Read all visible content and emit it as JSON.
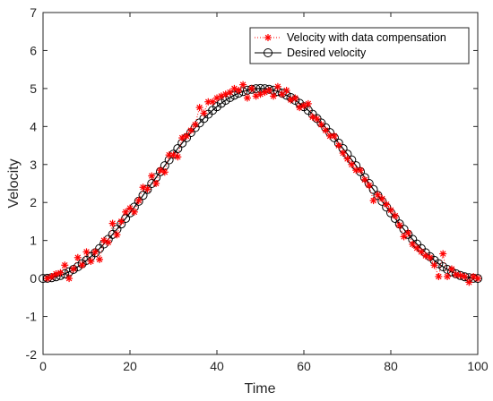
{
  "chart_data": {
    "type": "line",
    "title": "",
    "xlabel": "Time",
    "ylabel": "Velocity",
    "xlim": [
      0,
      100
    ],
    "ylim": [
      -2,
      7
    ],
    "xticks": [
      0,
      20,
      40,
      60,
      80,
      100
    ],
    "yticks": [
      -2,
      -1,
      0,
      1,
      2,
      3,
      4,
      5,
      6,
      7
    ],
    "grid": false,
    "legend_position": "top-right",
    "series": [
      {
        "name": "Velocity with data compensation",
        "marker": "asterisk",
        "line_style": "dotted",
        "color": "#ff0000",
        "x": [
          1,
          2,
          3,
          4,
          5,
          6,
          7,
          8,
          9,
          10,
          11,
          12,
          13,
          14,
          15,
          16,
          17,
          18,
          19,
          20,
          21,
          22,
          23,
          24,
          25,
          26,
          27,
          28,
          29,
          30,
          31,
          32,
          33,
          34,
          35,
          36,
          37,
          38,
          39,
          40,
          41,
          42,
          43,
          44,
          45,
          46,
          47,
          48,
          49,
          50,
          51,
          52,
          53,
          54,
          55,
          56,
          57,
          58,
          59,
          60,
          61,
          62,
          63,
          64,
          65,
          66,
          67,
          68,
          69,
          70,
          71,
          72,
          73,
          74,
          75,
          76,
          77,
          78,
          79,
          80,
          81,
          82,
          83,
          84,
          85,
          86,
          87,
          88,
          89,
          90,
          91,
          92,
          93,
          94,
          95,
          96,
          97,
          98,
          99,
          100
        ],
        "values": [
          0.0,
          0.05,
          0.12,
          0.15,
          0.35,
          0.0,
          0.25,
          0.55,
          0.35,
          0.7,
          0.45,
          0.7,
          0.5,
          1.0,
          0.95,
          1.45,
          1.15,
          1.5,
          1.75,
          1.85,
          1.75,
          2.05,
          2.4,
          2.35,
          2.7,
          2.5,
          2.85,
          2.8,
          3.25,
          3.25,
          3.2,
          3.7,
          3.75,
          3.9,
          4.05,
          4.5,
          4.35,
          4.65,
          4.65,
          4.75,
          4.8,
          4.85,
          4.9,
          5.0,
          4.95,
          5.1,
          4.75,
          5.0,
          4.8,
          4.85,
          4.9,
          4.95,
          4.8,
          5.05,
          4.85,
          4.95,
          4.7,
          4.75,
          4.5,
          4.55,
          4.6,
          4.25,
          4.2,
          4.05,
          3.9,
          3.75,
          3.75,
          3.5,
          3.3,
          3.15,
          3.0,
          2.85,
          2.85,
          2.6,
          2.45,
          2.05,
          2.2,
          2.1,
          1.95,
          1.8,
          1.65,
          1.4,
          1.1,
          1.2,
          0.9,
          0.8,
          0.7,
          0.6,
          0.55,
          0.35,
          0.05,
          0.65,
          0.05,
          0.25,
          0.1,
          0.08,
          0.05,
          -0.1,
          0.05,
          0.0
        ]
      },
      {
        "name": "Desired velocity",
        "marker": "circle",
        "line_style": "solid",
        "color": "#000000",
        "function": "2.5*(1-cos(2*pi*t/100))",
        "x": [
          0,
          1,
          2,
          3,
          4,
          5,
          6,
          7,
          8,
          9,
          10,
          11,
          12,
          13,
          14,
          15,
          16,
          17,
          18,
          19,
          20,
          21,
          22,
          23,
          24,
          25,
          26,
          27,
          28,
          29,
          30,
          31,
          32,
          33,
          34,
          35,
          36,
          37,
          38,
          39,
          40,
          41,
          42,
          43,
          44,
          45,
          46,
          47,
          48,
          49,
          50,
          51,
          52,
          53,
          54,
          55,
          56,
          57,
          58,
          59,
          60,
          61,
          62,
          63,
          64,
          65,
          66,
          67,
          68,
          69,
          70,
          71,
          72,
          73,
          74,
          75,
          76,
          77,
          78,
          79,
          80,
          81,
          82,
          83,
          84,
          85,
          86,
          87,
          88,
          89,
          90,
          91,
          92,
          93,
          94,
          95,
          96,
          97,
          98,
          99,
          100
        ]
      }
    ]
  },
  "colors": {
    "axis": "#262626",
    "background": "#ffffff",
    "compensation": "#ff0000",
    "desired": "#000000"
  }
}
